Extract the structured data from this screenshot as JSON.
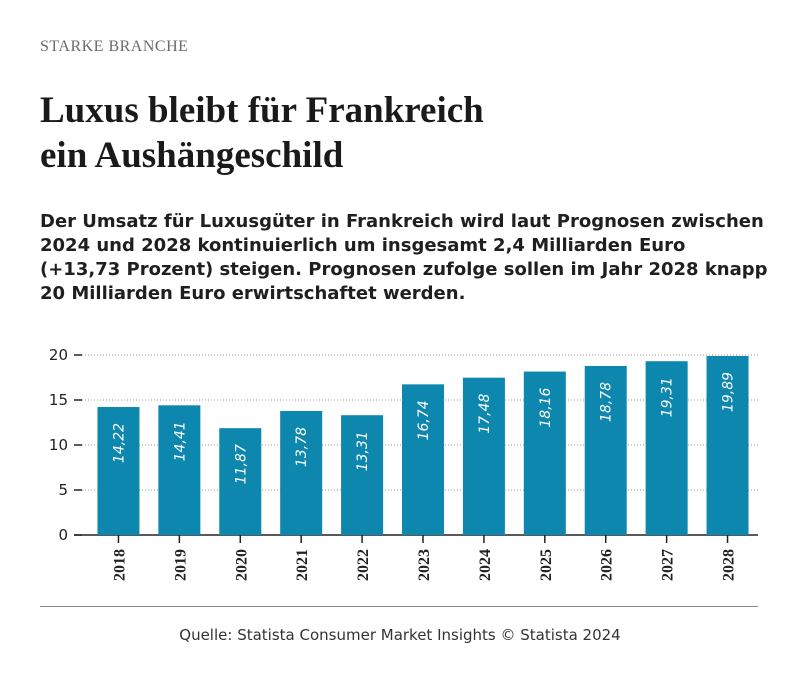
{
  "header": {
    "kicker": "STARKE BRANCHE",
    "title_line1": "Luxus bleibt für Frankreich",
    "title_line2": "ein Aushängeschild",
    "subtitle": "Der Umsatz für Luxusgüter in Frankreich wird laut Prognosen zwischen 2024 und 2028 kontinuierlich um insgesamt 2,4 Milliarden Euro (+13,73 Prozent) steigen. Prognosen zufolge sollen im Jahr 2028 knapp 20 Milliarden Euro erwirtschaftet werden."
  },
  "colors": {
    "bar": "#0e87ae",
    "grid": "#9a9a9a",
    "axis": "#222222"
  },
  "chart_data": {
    "type": "bar",
    "title": "Luxus bleibt für Frankreich ein Aushängeschild",
    "categories": [
      "2018",
      "2019",
      "2020",
      "2021",
      "2022",
      "2023",
      "2024",
      "2025",
      "2026",
      "2027",
      "2028"
    ],
    "values": [
      14.22,
      14.41,
      11.87,
      13.78,
      13.31,
      16.74,
      17.48,
      18.16,
      18.78,
      19.31,
      19.89
    ],
    "data_labels": [
      "14,22",
      "14,41",
      "11,87",
      "13,78",
      "13,31",
      "16,74",
      "17,48",
      "18,16",
      "18,78",
      "19,31",
      "19,89"
    ],
    "xlabel": "",
    "ylabel": "",
    "ylim": [
      0,
      20
    ],
    "yticks": [
      0,
      5,
      10,
      15,
      20
    ],
    "grid": true,
    "legend": "none"
  },
  "footer": {
    "source": "Quelle: Statista Consumer Market Insights © Statista 2024"
  }
}
